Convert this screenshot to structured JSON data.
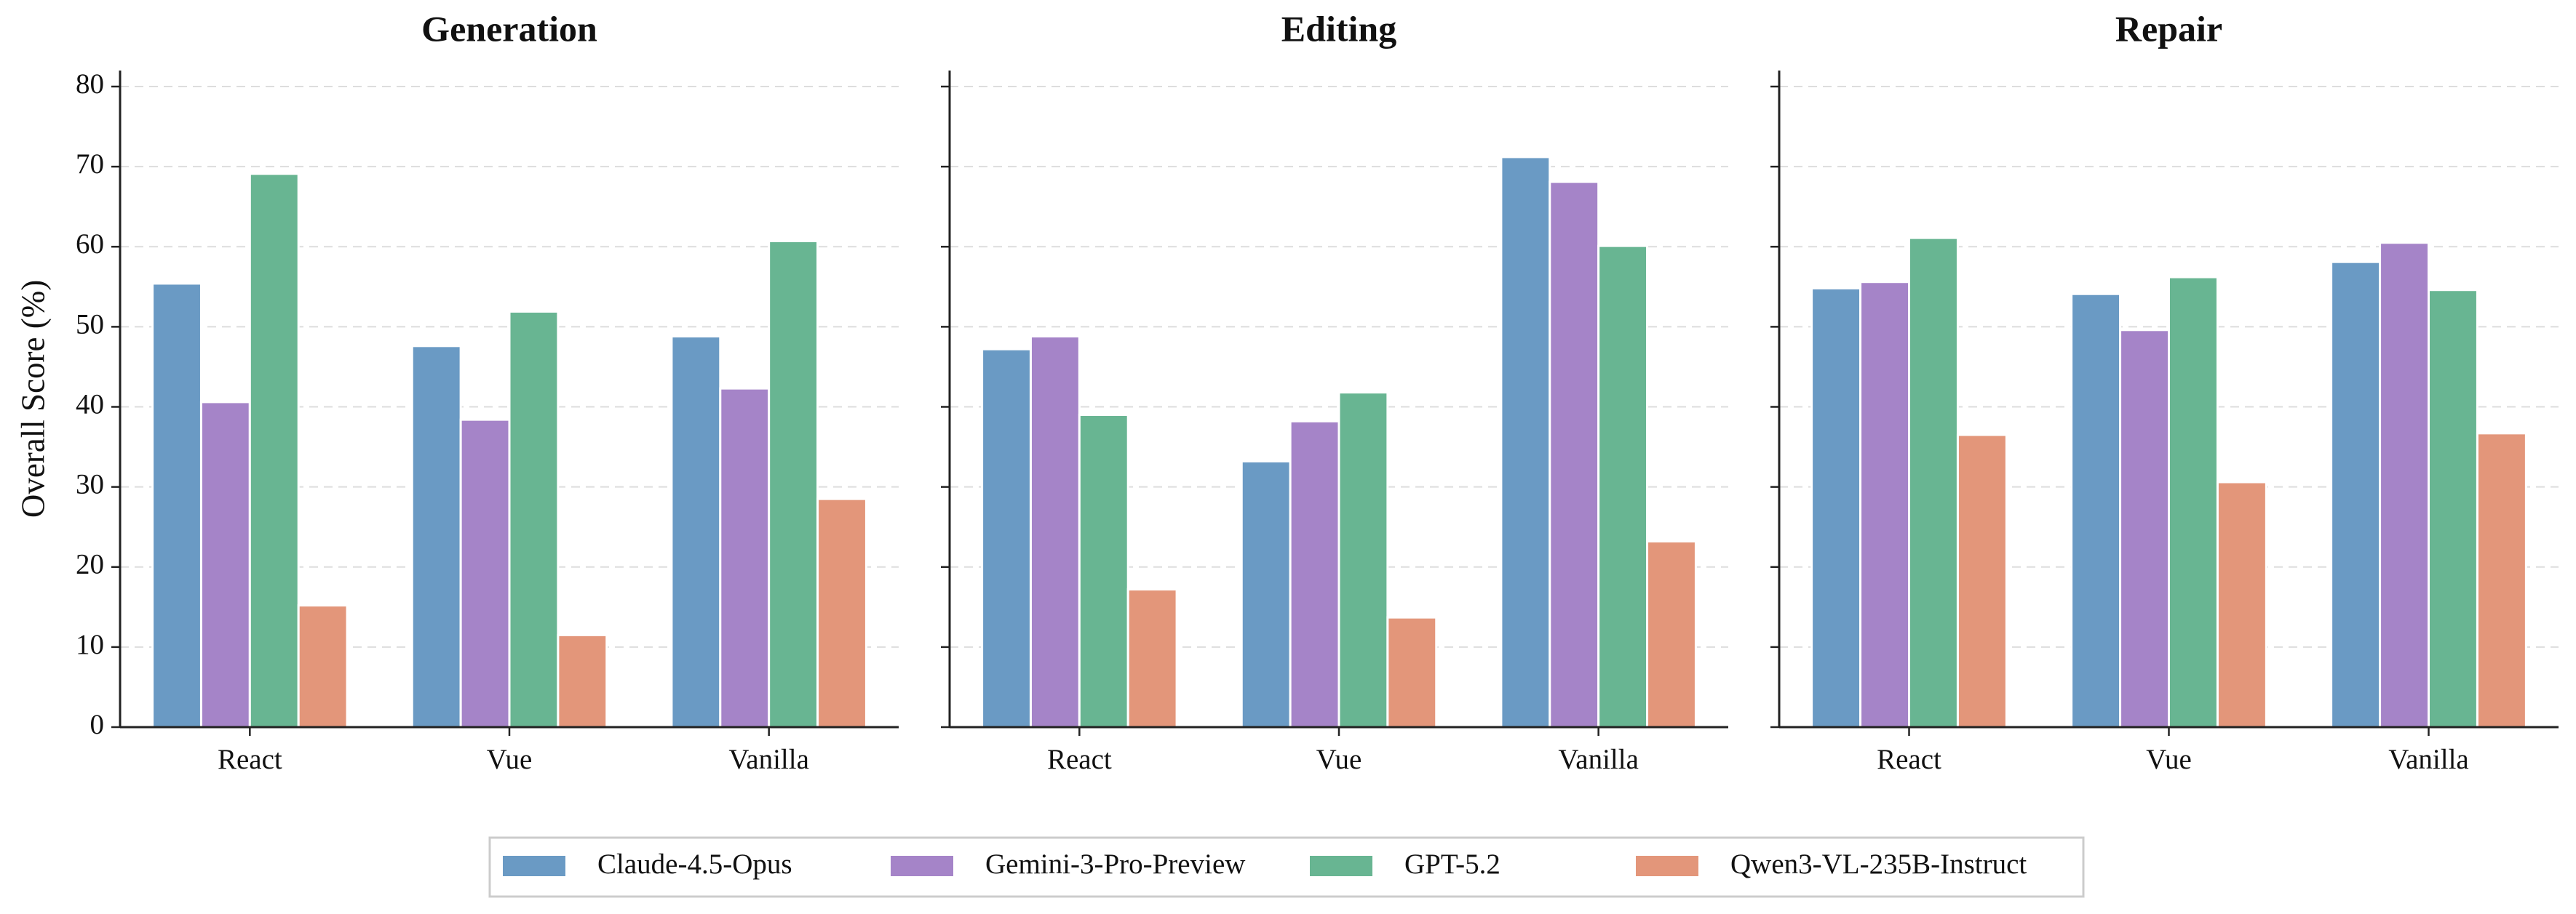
{
  "chart_data": [
    {
      "type": "bar",
      "title": "Generation",
      "y_label": "Overall Score (%)",
      "categories": [
        "React",
        "Vue",
        "Vanilla"
      ],
      "series": [
        {
          "name": "Claude-4.5-Opus",
          "color": "#6a9ac4",
          "values": [
            55.4,
            47.6,
            48.8
          ]
        },
        {
          "name": "Gemini-3-Pro-Preview",
          "color": "#a584c8",
          "values": [
            40.6,
            38.4,
            42.3
          ]
        },
        {
          "name": "GPT-5.2",
          "color": "#68b592",
          "values": [
            69.1,
            51.9,
            60.7
          ]
        },
        {
          "name": "Qwen3-VL-235B-Instruct",
          "color": "#e3967a",
          "values": [
            15.2,
            11.5,
            28.5
          ]
        }
      ],
      "ylim": [
        0,
        82
      ],
      "yticks": [
        0,
        10,
        20,
        30,
        40,
        50,
        60,
        70,
        80
      ],
      "grid": true
    },
    {
      "type": "bar",
      "title": "Editing",
      "categories": [
        "React",
        "Vue",
        "Vanilla"
      ],
      "series": [
        {
          "name": "Claude-4.5-Opus",
          "color": "#6a9ac4",
          "values": [
            47.2,
            33.2,
            71.2
          ]
        },
        {
          "name": "Gemini-3-Pro-Preview",
          "color": "#a584c8",
          "values": [
            48.8,
            38.2,
            68.1
          ]
        },
        {
          "name": "GPT-5.2",
          "color": "#68b592",
          "values": [
            39.0,
            41.8,
            60.1
          ]
        },
        {
          "name": "Qwen3-VL-235B-Instruct",
          "color": "#e3967a",
          "values": [
            17.2,
            13.7,
            23.2
          ]
        }
      ],
      "ylim": [
        0,
        82
      ],
      "yticks": [
        0,
        10,
        20,
        30,
        40,
        50,
        60,
        70,
        80
      ],
      "grid": true
    },
    {
      "type": "bar",
      "title": "Repair",
      "categories": [
        "React",
        "Vue",
        "Vanilla"
      ],
      "series": [
        {
          "name": "Claude-4.5-Opus",
          "color": "#6a9ac4",
          "values": [
            54.8,
            54.1,
            58.1
          ]
        },
        {
          "name": "Gemini-3-Pro-Preview",
          "color": "#a584c8",
          "values": [
            55.6,
            49.6,
            60.5
          ]
        },
        {
          "name": "GPT-5.2",
          "color": "#68b592",
          "values": [
            61.1,
            56.2,
            54.6
          ]
        },
        {
          "name": "Qwen3-VL-235B-Instruct",
          "color": "#e3967a",
          "values": [
            36.5,
            30.6,
            36.7
          ]
        }
      ],
      "ylim": [
        0,
        82
      ],
      "yticks": [
        0,
        10,
        20,
        30,
        40,
        50,
        60,
        70,
        80
      ],
      "grid": true
    }
  ]
}
